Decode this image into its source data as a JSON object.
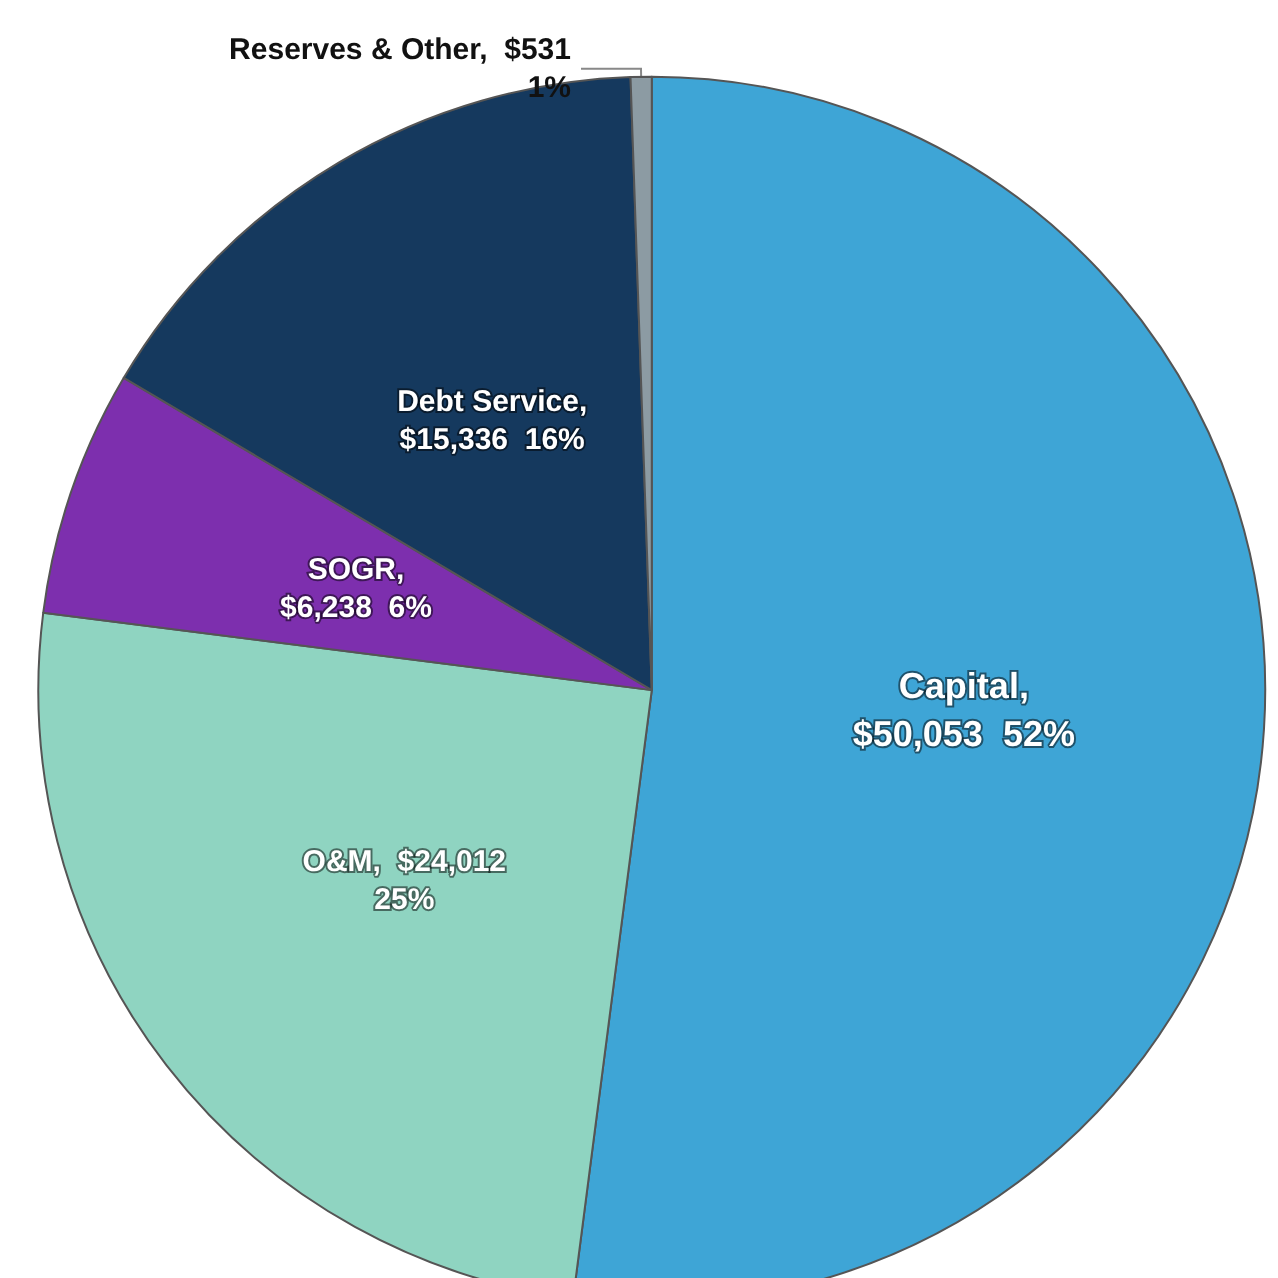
{
  "chart_data": {
    "type": "pie",
    "categories": [
      "Capital",
      "O&M",
      "SOGR",
      "Debt Service",
      "Reserves & Other"
    ],
    "values": [
      50053,
      24012,
      6238,
      15336,
      531
    ],
    "value_labels": [
      ",\n$50,053  52%",
      ",  $24,012\n25%",
      ",\n$6,238  6%",
      ",\n$15,336  16%",
      ",  $531\n1%"
    ],
    "colors": [
      "#3ea5d6",
      "#8fd4c1",
      "#7d2fae",
      "#15395e",
      "#8c9ba3"
    ],
    "legend": false
  }
}
